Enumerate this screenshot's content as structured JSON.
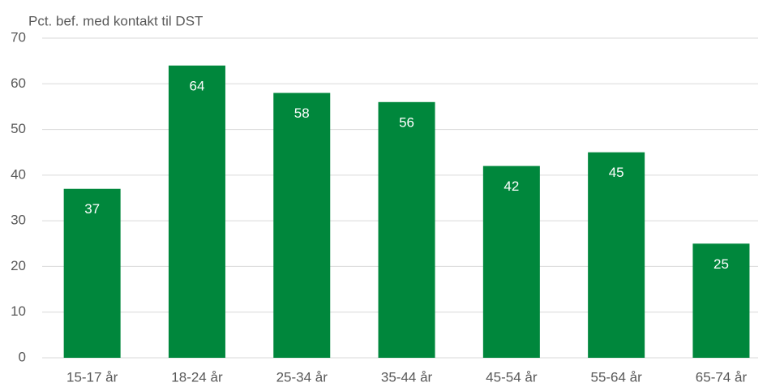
{
  "chart_data": {
    "type": "bar",
    "ylabel": "Pct. bef. med kontakt til DST",
    "categories": [
      "15-17 år",
      "18-24 år",
      "25-34 år",
      "35-44 år",
      "45-54 år",
      "55-64 år",
      "65-74 år"
    ],
    "values": [
      37,
      64,
      58,
      56,
      42,
      45,
      25
    ],
    "color": "#00873c",
    "ylim": [
      0,
      70
    ],
    "yticks": [
      0,
      10,
      20,
      30,
      40,
      50,
      60,
      70
    ],
    "grid": true
  }
}
